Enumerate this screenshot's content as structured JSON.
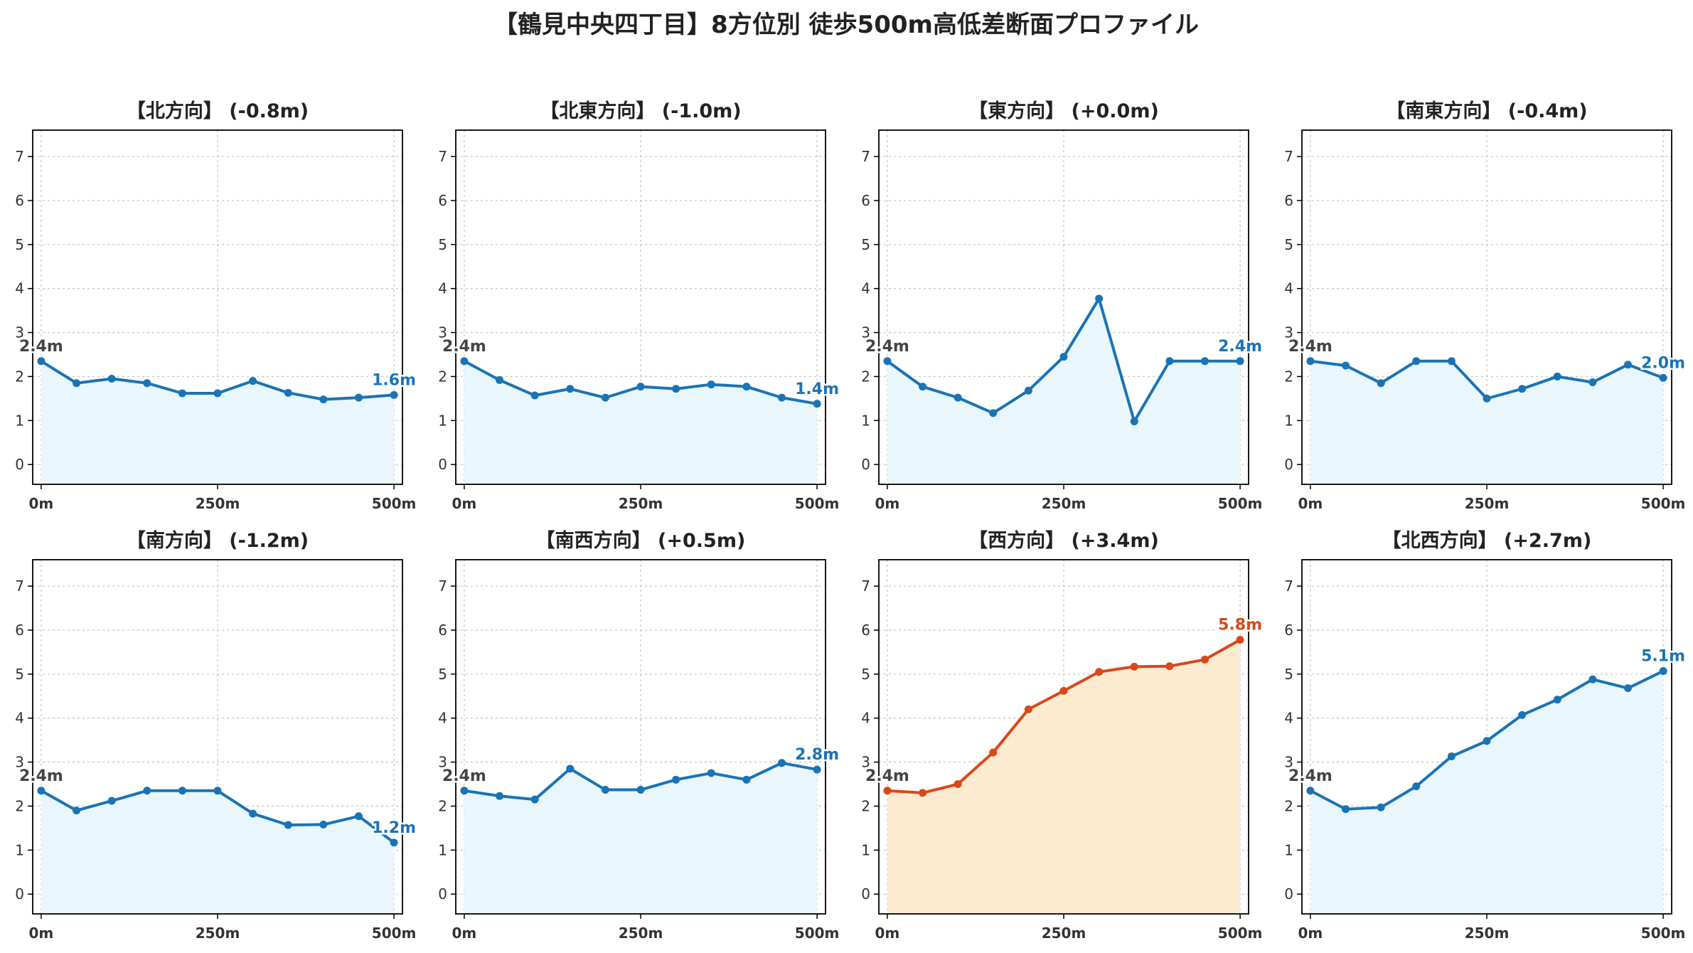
{
  "title": "【鶴見中央四丁目】8方位別 徒歩500m高低差断面プロファイル",
  "colors": {
    "normal_line": "#1a73b5",
    "normal_fill": "#e9f6fc",
    "highlight_line": "#d94818",
    "highlight_fill": "#fdebd1",
    "start_label": "#444444"
  },
  "chart_data": [
    {
      "type": "area",
      "title": "【北方向】 (-0.8m)",
      "x": [
        0,
        50,
        100,
        150,
        200,
        250,
        300,
        350,
        400,
        450,
        500
      ],
      "y": [
        2.35,
        1.85,
        1.95,
        1.85,
        1.62,
        1.62,
        1.9,
        1.63,
        1.48,
        1.52,
        1.58
      ],
      "xticks": [
        "0m",
        "250m",
        "500m"
      ],
      "yticks": [
        "0",
        "1",
        "2",
        "3",
        "4",
        "5",
        "6",
        "7"
      ],
      "ylim": [
        -0.45,
        7.6
      ],
      "xlim": [
        -12,
        512
      ],
      "start_label": "2.4m",
      "end_label": "1.6m",
      "highlight": false,
      "grid": true
    },
    {
      "type": "area",
      "title": "【北東方向】 (-1.0m)",
      "x": [
        0,
        50,
        100,
        150,
        200,
        250,
        300,
        350,
        400,
        450,
        500
      ],
      "y": [
        2.35,
        1.92,
        1.57,
        1.72,
        1.52,
        1.77,
        1.72,
        1.82,
        1.77,
        1.52,
        1.38
      ],
      "xticks": [
        "0m",
        "250m",
        "500m"
      ],
      "yticks": [
        "0",
        "1",
        "2",
        "3",
        "4",
        "5",
        "6",
        "7"
      ],
      "ylim": [
        -0.45,
        7.6
      ],
      "xlim": [
        -12,
        512
      ],
      "start_label": "2.4m",
      "end_label": "1.4m",
      "highlight": false,
      "grid": true
    },
    {
      "type": "area",
      "title": "【東方向】 (+0.0m)",
      "x": [
        0,
        50,
        100,
        150,
        200,
        250,
        300,
        350,
        400,
        450,
        500
      ],
      "y": [
        2.35,
        1.77,
        1.52,
        1.17,
        1.68,
        2.45,
        3.77,
        0.98,
        2.35,
        2.35,
        2.35
      ],
      "xticks": [
        "0m",
        "250m",
        "500m"
      ],
      "yticks": [
        "0",
        "1",
        "2",
        "3",
        "4",
        "5",
        "6",
        "7"
      ],
      "ylim": [
        -0.45,
        7.6
      ],
      "xlim": [
        -12,
        512
      ],
      "start_label": "2.4m",
      "end_label": "2.4m",
      "highlight": false,
      "grid": true
    },
    {
      "type": "area",
      "title": "【南東方向】 (-0.4m)",
      "x": [
        0,
        50,
        100,
        150,
        200,
        250,
        300,
        350,
        400,
        450,
        500
      ],
      "y": [
        2.35,
        2.25,
        1.85,
        2.35,
        2.35,
        1.5,
        1.72,
        2.0,
        1.87,
        2.27,
        1.97
      ],
      "xticks": [
        "0m",
        "250m",
        "500m"
      ],
      "yticks": [
        "0",
        "1",
        "2",
        "3",
        "4",
        "5",
        "6",
        "7"
      ],
      "ylim": [
        -0.45,
        7.6
      ],
      "xlim": [
        -12,
        512
      ],
      "start_label": "2.4m",
      "end_label": "2.0m",
      "highlight": false,
      "grid": true
    },
    {
      "type": "area",
      "title": "【南方向】 (-1.2m)",
      "x": [
        0,
        50,
        100,
        150,
        200,
        250,
        300,
        350,
        400,
        450,
        500
      ],
      "y": [
        2.35,
        1.9,
        2.12,
        2.35,
        2.35,
        2.35,
        1.83,
        1.57,
        1.58,
        1.77,
        1.17
      ],
      "xticks": [
        "0m",
        "250m",
        "500m"
      ],
      "yticks": [
        "0",
        "1",
        "2",
        "3",
        "4",
        "5",
        "6",
        "7"
      ],
      "ylim": [
        -0.45,
        7.6
      ],
      "xlim": [
        -12,
        512
      ],
      "start_label": "2.4m",
      "end_label": "1.2m",
      "highlight": false,
      "grid": true
    },
    {
      "type": "area",
      "title": "【南西方向】 (+0.5m)",
      "x": [
        0,
        50,
        100,
        150,
        200,
        250,
        300,
        350,
        400,
        450,
        500
      ],
      "y": [
        2.35,
        2.23,
        2.15,
        2.85,
        2.37,
        2.37,
        2.6,
        2.75,
        2.6,
        2.98,
        2.83
      ],
      "xticks": [
        "0m",
        "250m",
        "500m"
      ],
      "yticks": [
        "0",
        "1",
        "2",
        "3",
        "4",
        "5",
        "6",
        "7"
      ],
      "ylim": [
        -0.45,
        7.6
      ],
      "xlim": [
        -12,
        512
      ],
      "start_label": "2.4m",
      "end_label": "2.8m",
      "highlight": false,
      "grid": true
    },
    {
      "type": "area",
      "title": "【西方向】 (+3.4m)",
      "x": [
        0,
        50,
        100,
        150,
        200,
        250,
        300,
        350,
        400,
        450,
        500
      ],
      "y": [
        2.35,
        2.3,
        2.5,
        3.22,
        4.2,
        4.62,
        5.05,
        5.17,
        5.18,
        5.33,
        5.78
      ],
      "xticks": [
        "0m",
        "250m",
        "500m"
      ],
      "yticks": [
        "0",
        "1",
        "2",
        "3",
        "4",
        "5",
        "6",
        "7"
      ],
      "ylim": [
        -0.45,
        7.6
      ],
      "xlim": [
        -12,
        512
      ],
      "start_label": "2.4m",
      "end_label": "5.8m",
      "highlight": true,
      "grid": true
    },
    {
      "type": "area",
      "title": "【北西方向】 (+2.7m)",
      "x": [
        0,
        50,
        100,
        150,
        200,
        250,
        300,
        350,
        400,
        450,
        500
      ],
      "y": [
        2.35,
        1.93,
        1.97,
        2.45,
        3.13,
        3.48,
        4.07,
        4.42,
        4.88,
        4.68,
        5.07
      ],
      "xticks": [
        "0m",
        "250m",
        "500m"
      ],
      "yticks": [
        "0",
        "1",
        "2",
        "3",
        "4",
        "5",
        "6",
        "7"
      ],
      "ylim": [
        -0.45,
        7.6
      ],
      "xlim": [
        -12,
        512
      ],
      "start_label": "2.4m",
      "end_label": "5.1m",
      "highlight": false,
      "grid": true
    }
  ]
}
